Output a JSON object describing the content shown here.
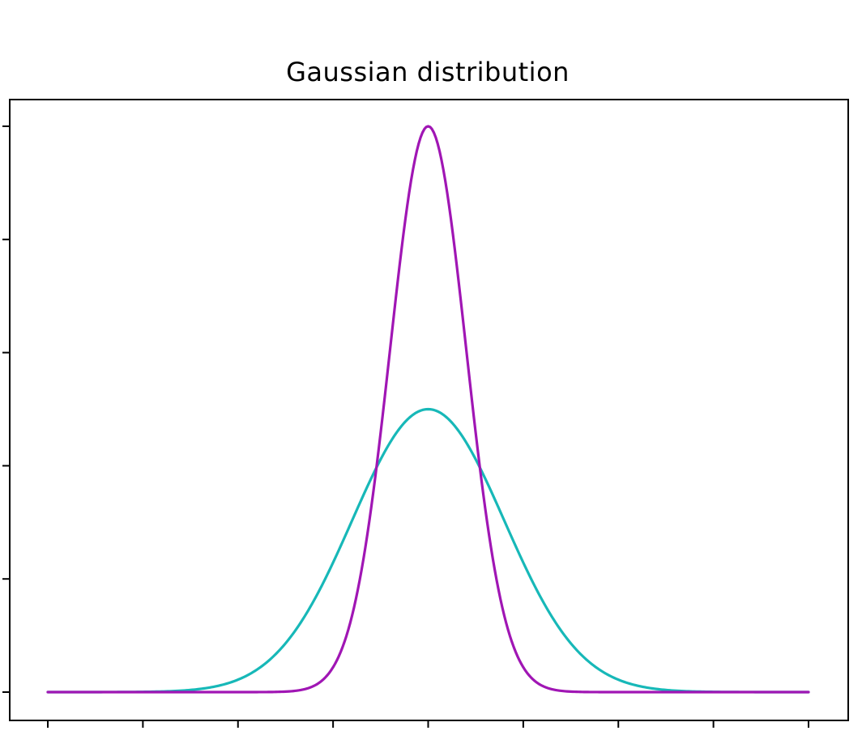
{
  "chart_data": {
    "type": "line",
    "title": "Gaussian distribution",
    "xlabel": "",
    "ylabel": "",
    "xlim": [
      -4,
      4
    ],
    "ylim": [
      0,
      1.0
    ],
    "x_ticks": [
      -4,
      -3,
      -2,
      -1,
      0,
      1,
      2,
      3,
      4
    ],
    "y_ticks": [
      0.0,
      0.2,
      0.4,
      0.6,
      0.8,
      1.0
    ],
    "tick_labels_visible": false,
    "grid": false,
    "legend": "none",
    "series": [
      {
        "distribution": "normal",
        "mean": 0,
        "std": 0.8,
        "peak": 0.5,
        "color": "#17b8b8",
        "x": [
          -4,
          -3,
          -2.5,
          -2,
          -1.5,
          -1,
          -0.5,
          0,
          0.5,
          1,
          1.5,
          2,
          2.5,
          3,
          4
        ],
        "values": [
          0.0,
          0.0004,
          0.0038,
          0.0239,
          0.0871,
          0.2301,
          0.4115,
          0.5,
          0.4115,
          0.2301,
          0.0871,
          0.0239,
          0.0038,
          0.0004,
          0.0
        ]
      },
      {
        "distribution": "normal",
        "mean": 0,
        "std": 0.4,
        "peak": 1.0,
        "color": "#a016b4",
        "x": [
          -4,
          -2,
          -1.5,
          -1,
          -0.75,
          -0.5,
          -0.25,
          0,
          0.25,
          0.5,
          0.75,
          1,
          1.5,
          2,
          4
        ],
        "values": [
          0.0,
          0.0,
          0.0009,
          0.0439,
          0.1724,
          0.4578,
          0.8226,
          1.0,
          0.8226,
          0.4578,
          0.1724,
          0.0439,
          0.0009,
          0.0,
          0.0
        ]
      }
    ]
  }
}
